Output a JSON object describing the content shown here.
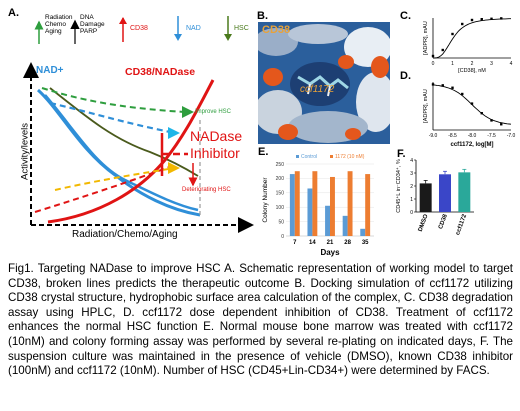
{
  "panel_a": {
    "label": "A.",
    "legend": [
      {
        "text": "Radiation\nChemo\nAging",
        "color": "#2e9e3e"
      },
      {
        "text": "DNA\nDamage\nPARP",
        "color": "#000000"
      },
      {
        "text": "CD38",
        "color": "#e01414"
      },
      {
        "text": "NAD",
        "color": "#2f8fd8"
      },
      {
        "text": "HSC",
        "color": "#4a7a1c"
      }
    ],
    "nad_label": "NAD+",
    "cd38_label": "CD38/NADase",
    "ylabel": "Activity/levels",
    "xlabel": "Radiation/Chemo/Aging",
    "improve_label": "Improve HSC",
    "deteriorate_label": "Deteriorating HSC",
    "inhibitor_label_1": "NADase",
    "inhibitor_label_2": "Inhibitor"
  },
  "panel_b": {
    "label": "B.",
    "title": "CD38",
    "compound": "ccf1172"
  },
  "panel_c": {
    "label": "C.",
    "chart_data": {
      "type": "scatter",
      "xlabel": "[CD38], nM",
      "ylabel": "[ADPR], mAU",
      "xticks": [
        "0",
        "1",
        "2",
        "3",
        "4"
      ],
      "x": [
        0.0,
        0.5,
        1.0,
        1.5,
        2.0,
        2.5,
        3.0,
        3.5
      ],
      "y": [
        0.05,
        0.2,
        0.6,
        0.85,
        0.95,
        0.97,
        0.98,
        0.99
      ]
    }
  },
  "panel_d": {
    "label": "D.",
    "chart_data": {
      "type": "scatter",
      "xlabel": "ccf1172, log[M]",
      "ylabel": "[ADPR], mAU",
      "xticks": [
        "-9.0",
        "-8.5",
        "-8.0",
        "-7.5",
        "-7.0"
      ],
      "x": [
        -9.0,
        -8.75,
        -8.5,
        -8.25,
        -8.0,
        -7.75,
        -7.5,
        -7.25
      ],
      "y": [
        0.95,
        0.93,
        0.88,
        0.75,
        0.55,
        0.35,
        0.2,
        0.12
      ]
    }
  },
  "panel_e": {
    "label": "E.",
    "chart_data": {
      "type": "bar",
      "categories": [
        "7",
        "14",
        "21",
        "28",
        "35"
      ],
      "series": [
        {
          "name": "Control",
          "values": [
            215,
            165,
            105,
            70,
            25
          ],
          "color": "#5b9bd5"
        },
        {
          "name": "1172 (10 nM)",
          "values": [
            225,
            225,
            205,
            225,
            215
          ],
          "color": "#ed7d31"
        }
      ],
      "xlabel": "Days",
      "ylabel": "Colony Number",
      "yticks": [
        "0",
        "50",
        "100",
        "150",
        "200",
        "250"
      ],
      "ylim": [
        0,
        250
      ]
    }
  },
  "panel_f": {
    "label": "F.",
    "chart_data": {
      "type": "bar",
      "categories": [
        "DMSO",
        "CD38",
        "ccf1172"
      ],
      "values": [
        2.2,
        2.9,
        3.05
      ],
      "colors": [
        "#1a1a1a",
        "#3a46c8",
        "#2aa89a"
      ],
      "ylabel": "CD45⁺L in⁻CD34⁺, %",
      "yticks": [
        "0",
        "1",
        "2",
        "3",
        "4"
      ],
      "ylim": [
        0,
        4
      ]
    }
  },
  "caption": "Fig1. Targeting NADase to improve HSC A. Schematic representation of working model to target CD38, broken lines predicts the therapeutic outcome B. Docking simulation of ccf1172 utilizing CD38 crystal structure, hydrophobic surface area calculation of the complex, C. CD38 degradation assay using HPLC, D. ccf1172 dose dependent inhibition of CD38. Treatment of ccf1172 enhances the normal HSC function E. Normal mouse bone marrow was treated with ccf1172 (10nM) and colony forming assay was performed by several re-plating on indicated days, F. The suspension culture was maintained in the presence of vehicle (DMSO), known CD38 inhibitor (100nM) and ccf1172 (10nM). Number of HSC (CD45+Lin-CD34+) were determined by FACS."
}
